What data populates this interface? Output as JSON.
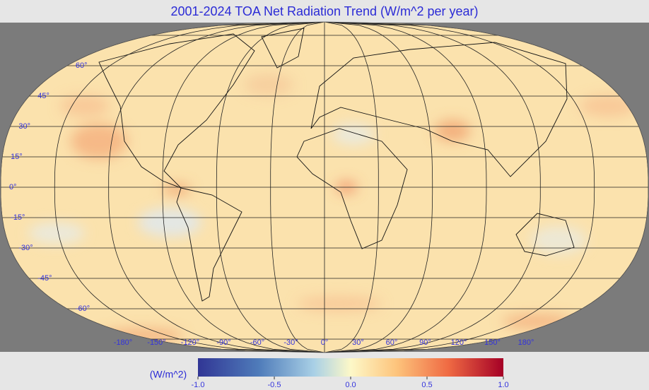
{
  "title": "2001-2024 TOA Net Radiation Trend (W/m^2 per year)",
  "latitude_labels": [
    {
      "value": 60,
      "label": "60°"
    },
    {
      "value": 45,
      "label": "45°"
    },
    {
      "value": 30,
      "label": "30°"
    },
    {
      "value": 15,
      "label": "15°"
    },
    {
      "value": 0,
      "label": "0°"
    },
    {
      "value": -15,
      "label": "-15°"
    },
    {
      "value": -30,
      "label": "-30°"
    },
    {
      "value": -45,
      "label": "-45°"
    },
    {
      "value": -60,
      "label": "-60°"
    }
  ],
  "longitude_labels": [
    {
      "value": -180,
      "label": "-180°"
    },
    {
      "value": -150,
      "label": "-150°"
    },
    {
      "value": -120,
      "label": "-120°"
    },
    {
      "value": -90,
      "label": "-90°"
    },
    {
      "value": -60,
      "label": "-60°"
    },
    {
      "value": -30,
      "label": "-30°"
    },
    {
      "value": 0,
      "label": "0°"
    },
    {
      "value": 30,
      "label": "30°"
    },
    {
      "value": 60,
      "label": "60°"
    },
    {
      "value": 90,
      "label": "90°"
    },
    {
      "value": 120,
      "label": "120°"
    },
    {
      "value": 150,
      "label": "150°"
    },
    {
      "value": 180,
      "label": "180°"
    }
  ],
  "colorbar": {
    "label": "(W/m^2)",
    "lim": [
      -1,
      1
    ],
    "ticks": [
      {
        "value": -1,
        "label": "-1.0"
      },
      {
        "value": -0.5,
        "label": "-0.5"
      },
      {
        "value": 0,
        "label": "0.0"
      },
      {
        "value": 0.5,
        "label": "0.5"
      },
      {
        "value": 1,
        "label": "1.0"
      }
    ]
  }
}
